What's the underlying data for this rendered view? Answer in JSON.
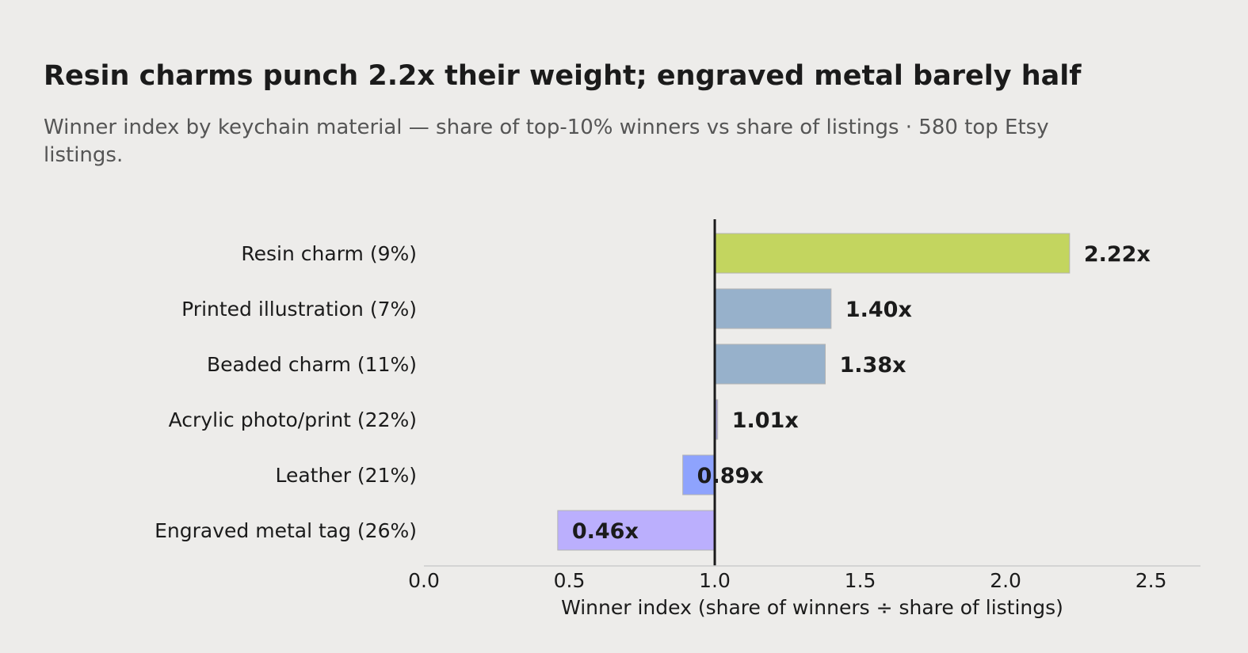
{
  "header": {
    "title": "Resin charms punch 2.2x their weight; engraved metal barely half",
    "subtitle": "Winner index by keychain material — share of top-10% winners vs share of listings · 580 top Etsy listings."
  },
  "chart_data": {
    "type": "bar",
    "orientation": "horizontal",
    "title": "Resin charms punch 2.2x their weight; engraved metal barely half",
    "subtitle": "Winner index by keychain material — share of top-10% winners vs share of listings · 580 top Etsy listings.",
    "xlabel": "Winner index  (share of winners ÷ share of listings)",
    "ylabel": "",
    "xlim": [
      0.0,
      2.67
    ],
    "baseline": 1.0,
    "xticks": [
      "0.0",
      "0.5",
      "1.0",
      "1.5",
      "2.0",
      "2.5"
    ],
    "xtick_values": [
      0.0,
      0.5,
      1.0,
      1.5,
      2.0,
      2.5
    ],
    "grid": false,
    "legend": "none",
    "categories": [
      "Resin charm  (9%)",
      "Printed illustration  (7%)",
      "Beaded charm  (11%)",
      "Acrylic photo/print  (22%)",
      "Leather  (21%)",
      "Engraved metal tag  (26%)"
    ],
    "values": [
      2.22,
      1.4,
      1.38,
      1.01,
      0.89,
      0.46
    ],
    "value_labels": [
      "2.22x",
      "1.40x",
      "1.38x",
      "1.01x",
      "0.89x",
      "0.46x"
    ],
    "colors": [
      "#c3d55f",
      "#97b1cb",
      "#97b1cb",
      "#a9a7d6",
      "#8ea3fd",
      "#bbaffd"
    ],
    "baseline_color": "#1b1b1b",
    "axis_color": "#cccccc"
  }
}
